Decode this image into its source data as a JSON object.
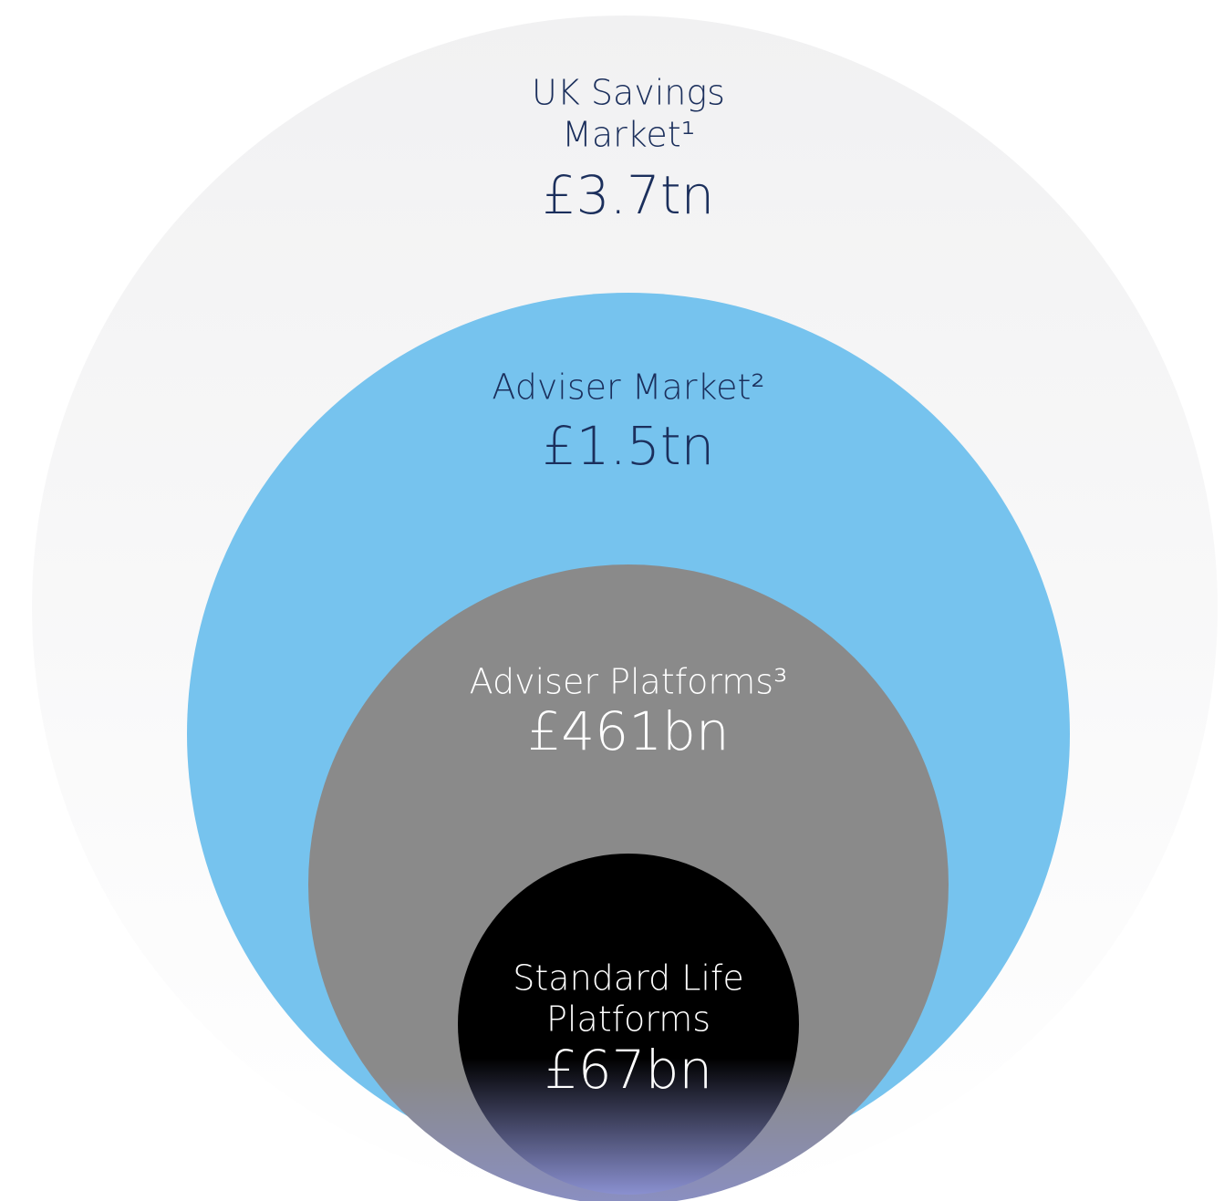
{
  "nodes": [
    {
      "label_lines": [
        "UK Savings",
        "Market¹"
      ],
      "value": "£3.7tn"
    },
    {
      "label_lines": [
        "Adviser Market²"
      ],
      "value": "£1.5tn"
    },
    {
      "label_lines": [
        "Adviser Platforms³"
      ],
      "value": "£461bn"
    },
    {
      "label_lines": [
        "Standard Life",
        "Platforms"
      ],
      "value": "£67bn"
    }
  ]
}
